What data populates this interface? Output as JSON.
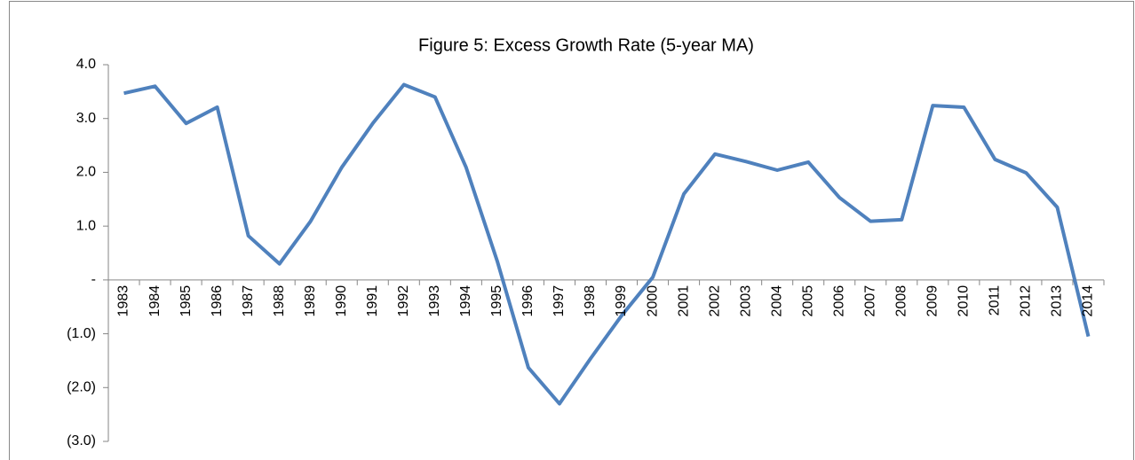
{
  "chart_data": {
    "type": "line",
    "title": "Figure 5: Excess Growth Rate (5-year MA)",
    "categories": [
      "1983",
      "1984",
      "1985",
      "1986",
      "1987",
      "1988",
      "1989",
      "1990",
      "1991",
      "1992",
      "1993",
      "1994",
      "1995",
      "1996",
      "1997",
      "1998",
      "1999",
      "2000",
      "2001",
      "2002",
      "2003",
      "2004",
      "2005",
      "2006",
      "2007",
      "2008",
      "2009",
      "2010",
      "2011",
      "2012",
      "2013",
      "2014"
    ],
    "values": [
      3.47,
      3.6,
      2.91,
      3.21,
      0.82,
      0.3,
      1.09,
      2.09,
      2.91,
      3.63,
      3.4,
      2.09,
      0.35,
      -1.63,
      -2.3,
      -1.46,
      -0.66,
      0.05,
      1.6,
      2.34,
      2.2,
      2.04,
      2.19,
      1.53,
      1.09,
      1.12,
      3.24,
      3.21,
      2.24,
      1.99,
      1.35,
      -1.05
    ],
    "color": "#4f81bd",
    "ylim": [
      -3,
      4
    ],
    "yticks": [
      {
        "value": 4,
        "label": "4.0"
      },
      {
        "value": 3,
        "label": "3.0"
      },
      {
        "value": 2,
        "label": "2.0"
      },
      {
        "value": 1,
        "label": "1.0"
      },
      {
        "value": 0,
        "label": "-"
      },
      {
        "value": -1,
        "label": "(1.0)"
      },
      {
        "value": -2,
        "label": "(2.0)"
      },
      {
        "value": -3,
        "label": "(3.0)"
      }
    ]
  }
}
